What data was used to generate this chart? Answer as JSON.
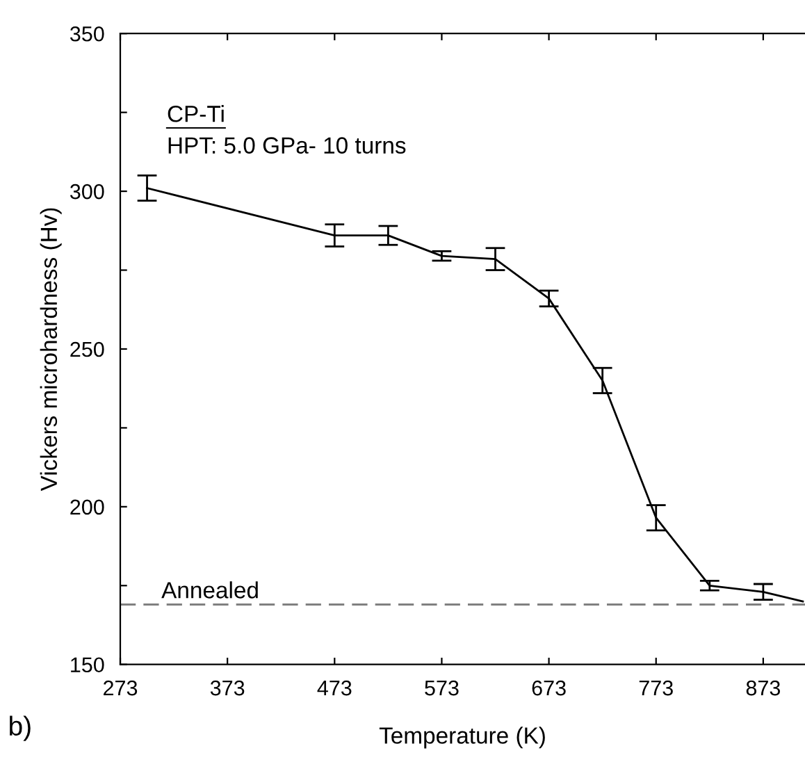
{
  "chart_data": {
    "type": "line",
    "xlabel": "Temperature (K)",
    "ylabel": "Vickers microhardness (Hv)",
    "annotations": [
      "CP-Ti",
      "HPT: 5.0 GPa- 10 turns",
      "b)"
    ],
    "x": [
      298,
      473,
      523,
      573,
      623,
      673,
      723,
      773,
      823,
      873,
      910
    ],
    "series": [
      {
        "color": "#000000",
        "values": [
          301,
          286,
          286,
          279.5,
          278.5,
          266,
          240,
          196.5,
          175,
          173,
          170
        ],
        "errors": [
          4,
          3.5,
          3,
          1.5,
          3.5,
          2.5,
          4,
          4,
          1.5,
          2.5,
          null
        ]
      }
    ],
    "xlim": [
      273,
      912
    ],
    "ylim": [
      150,
      350
    ],
    "xticks": [
      273,
      373,
      473,
      573,
      673,
      773,
      873
    ],
    "yticks": [
      150,
      {
        "value": 175,
        "label": null
      },
      200,
      {
        "value": 225,
        "label": null
      },
      250,
      {
        "value": 275,
        "label": null
      },
      300,
      {
        "value": 325,
        "label": null
      },
      350
    ],
    "ref_lines": [
      {
        "axis": "y",
        "value": 169,
        "label": "Annealed",
        "color": "#808080",
        "line_style": "dashed"
      }
    ],
    "grid": false,
    "legend": false,
    "marker": "none",
    "line_style": "solid"
  }
}
